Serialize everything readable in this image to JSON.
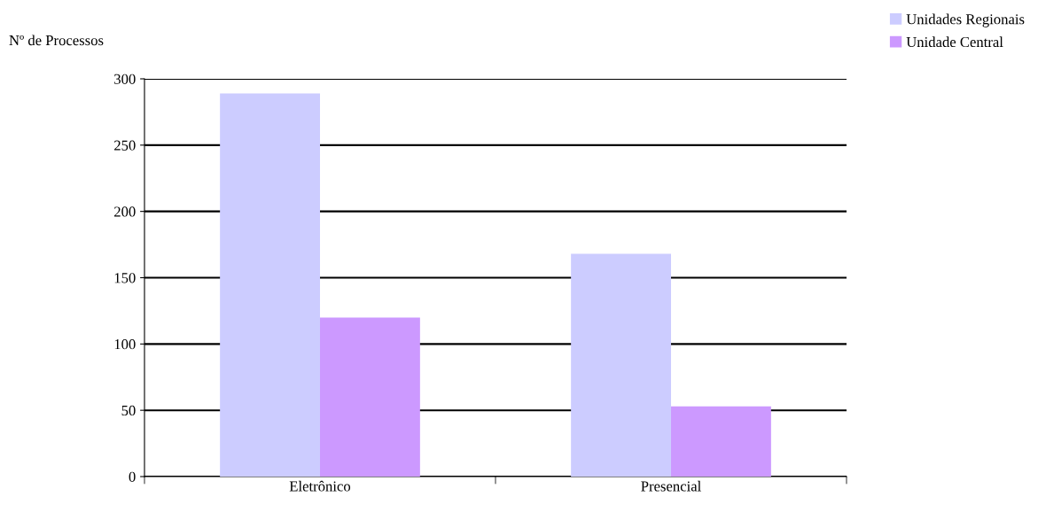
{
  "chart_data": {
    "type": "bar",
    "ylabel": "Nº de Processos",
    "categories": [
      "Eletrônico",
      "Presencial"
    ],
    "series": [
      {
        "name": "Unidades Regionais",
        "color": "#ccccff",
        "values": [
          289,
          168
        ]
      },
      {
        "name": "Unidade Central",
        "color": "#cc99ff",
        "values": [
          120,
          53
        ]
      }
    ],
    "ylim": [
      0,
      300
    ],
    "yticks": [
      0,
      50,
      100,
      150,
      200,
      250,
      300
    ],
    "grid": "y",
    "legend": "top right"
  }
}
